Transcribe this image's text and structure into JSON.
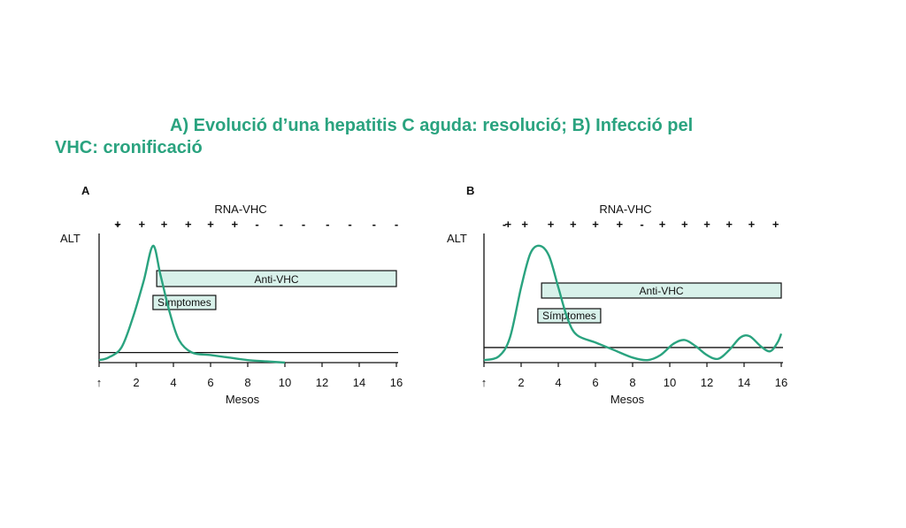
{
  "figure": {
    "caption_line1": "A) Evolució d’una hepatitis C aguda: resolució; B) Infecció pel",
    "caption_line2": "VHC: cronificació"
  },
  "colors": {
    "accent": "#2aa37f",
    "curve": "#2aa37f",
    "box_fill": "#d8f1ea",
    "ink": "#111111"
  },
  "chart_data": [
    {
      "type": "line",
      "panel_label": "A",
      "title": "RNA-VHC",
      "ylabel": "ALT",
      "xlabel": "Mesos",
      "xlim": [
        0,
        16
      ],
      "ylim": [
        0,
        10
      ],
      "x_tick_labels": [
        "↑",
        "2",
        "4",
        "6",
        "8",
        "10",
        "12",
        "14",
        "16"
      ],
      "rna_marks": [
        {
          "x": 1.0,
          "s": "-"
        },
        {
          "x": 1.0,
          "s": "+"
        },
        {
          "x": 2.3,
          "s": "+"
        },
        {
          "x": 3.5,
          "s": "+"
        },
        {
          "x": 4.8,
          "s": "+"
        },
        {
          "x": 6.0,
          "s": "+"
        },
        {
          "x": 7.3,
          "s": "+"
        },
        {
          "x": 8.5,
          "s": "-"
        },
        {
          "x": 9.8,
          "s": "-"
        },
        {
          "x": 11.0,
          "s": "-"
        },
        {
          "x": 12.3,
          "s": "-"
        },
        {
          "x": 13.5,
          "s": "-"
        },
        {
          "x": 14.8,
          "s": "-"
        },
        {
          "x": 16.0,
          "s": "-"
        }
      ],
      "baseline": 0.8,
      "series": [
        {
          "values": [
            [
              0,
              0.2
            ],
            [
              0.5,
              0.4
            ],
            [
              1.2,
              1.2
            ],
            [
              1.8,
              3.5
            ],
            [
              2.4,
              6.5
            ],
            [
              2.9,
              9.3
            ],
            [
              3.3,
              7.0
            ],
            [
              3.8,
              4.0
            ],
            [
              4.3,
              1.8
            ],
            [
              5,
              0.8
            ],
            [
              6,
              0.6
            ],
            [
              7,
              0.4
            ],
            [
              8,
              0.2
            ],
            [
              9,
              0.1
            ],
            [
              10,
              0
            ]
          ]
        }
      ],
      "bars": [
        {
          "label": "Anti-VHC",
          "x_start": 3.1,
          "x_end": 16
        },
        {
          "label": "Símptomes",
          "x_start": 2.9,
          "x_end": 7.0
        }
      ]
    },
    {
      "type": "line",
      "panel_label": "B",
      "title": "RNA-VHC",
      "ylabel": "ALT",
      "xlabel": "Mesos",
      "xlim": [
        0,
        16
      ],
      "ylim": [
        0,
        10
      ],
      "x_tick_labels": [
        "↑",
        "2",
        "4",
        "6",
        "8",
        "10",
        "12",
        "14",
        "16"
      ],
      "rna_marks": [
        {
          "x": 1.1,
          "s": "-"
        },
        {
          "x": 1.3,
          "s": "+"
        },
        {
          "x": 2.2,
          "s": "+"
        },
        {
          "x": 3.6,
          "s": "+"
        },
        {
          "x": 4.8,
          "s": "+"
        },
        {
          "x": 6.0,
          "s": "+"
        },
        {
          "x": 7.3,
          "s": "+"
        },
        {
          "x": 8.5,
          "s": "-"
        },
        {
          "x": 9.6,
          "s": "+"
        },
        {
          "x": 10.8,
          "s": "+"
        },
        {
          "x": 12.0,
          "s": "+"
        },
        {
          "x": 13.2,
          "s": "+"
        },
        {
          "x": 14.4,
          "s": "+"
        },
        {
          "x": 15.7,
          "s": "+"
        }
      ],
      "baseline": 1.2,
      "series": [
        {
          "values": [
            [
              0,
              0.2
            ],
            [
              0.8,
              0.5
            ],
            [
              1.4,
              2.0
            ],
            [
              2.0,
              6.0
            ],
            [
              2.5,
              8.7
            ],
            [
              3.0,
              9.3
            ],
            [
              3.5,
              8.5
            ],
            [
              4.0,
              6.0
            ],
            [
              4.5,
              3.5
            ],
            [
              5,
              2.2
            ],
            [
              6,
              1.6
            ],
            [
              7,
              1.0
            ],
            [
              8,
              0.4
            ],
            [
              8.8,
              0.2
            ],
            [
              9.5,
              0.6
            ],
            [
              10.2,
              1.5
            ],
            [
              10.8,
              1.8
            ],
            [
              11.4,
              1.3
            ],
            [
              12,
              0.6
            ],
            [
              12.6,
              0.3
            ],
            [
              13.2,
              1.0
            ],
            [
              13.8,
              2.0
            ],
            [
              14.3,
              2.1
            ],
            [
              14.9,
              1.3
            ],
            [
              15.4,
              0.9
            ],
            [
              15.8,
              1.6
            ],
            [
              16,
              2.3
            ]
          ]
        }
      ],
      "bars": [
        {
          "label": "Anti-VHC",
          "x_start": 3.1,
          "x_end": 16
        },
        {
          "label": "Símptomes",
          "x_start": 2.9,
          "x_end": 7.2
        }
      ]
    }
  ]
}
